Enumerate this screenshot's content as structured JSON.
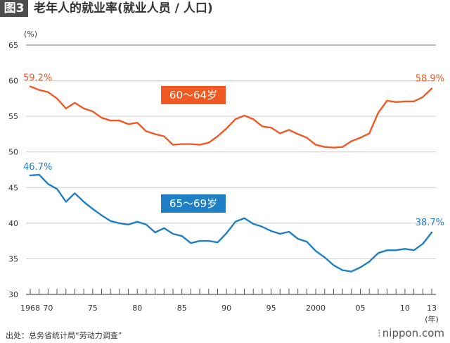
{
  "header": {
    "figure_label": "图3",
    "title": "老年人的就业率(就业人员 / 人口)"
  },
  "footer": {
    "source": "出处：总务省统计局“劳动力调查”",
    "brand": "nippon.com",
    "brand_mark": "⁝"
  },
  "chart_data": {
    "type": "line",
    "title": "老年人的就业率(就业人员 / 人口)",
    "ylabel": "(%)",
    "xlabel": "(年)",
    "ylim": [
      30,
      65
    ],
    "yticks": [
      30,
      35,
      40,
      45,
      50,
      55,
      60,
      65
    ],
    "xlim": [
      1968,
      2013
    ],
    "xtick_labels": [
      {
        "x": 1968,
        "label": "1968"
      },
      {
        "x": 1970,
        "label": "70"
      },
      {
        "x": 1975,
        "label": "75"
      },
      {
        "x": 1980,
        "label": "80"
      },
      {
        "x": 1985,
        "label": "85"
      },
      {
        "x": 1990,
        "label": "90"
      },
      {
        "x": 1995,
        "label": "95"
      },
      {
        "x": 2000,
        "label": "2000"
      },
      {
        "x": 2005,
        "label": "05"
      },
      {
        "x": 2010,
        "label": "10"
      },
      {
        "x": 2013,
        "label": "13"
      }
    ],
    "grid": "horizontal",
    "series": [
      {
        "name": "60～64岁",
        "color": "#f05a22",
        "start_label": "59.2%",
        "end_label": "58.9%",
        "x": [
          1968,
          1969,
          1970,
          1971,
          1972,
          1973,
          1974,
          1975,
          1976,
          1977,
          1978,
          1979,
          1980,
          1981,
          1982,
          1983,
          1984,
          1985,
          1986,
          1987,
          1988,
          1989,
          1990,
          1991,
          1992,
          1993,
          1994,
          1995,
          1996,
          1997,
          1998,
          1999,
          2000,
          2001,
          2002,
          2003,
          2004,
          2005,
          2006,
          2007,
          2008,
          2009,
          2010,
          2011,
          2012,
          2013
        ],
        "values": [
          59.2,
          58.7,
          58.4,
          57.5,
          56.1,
          56.9,
          56.1,
          55.7,
          54.8,
          54.4,
          54.4,
          53.9,
          54.1,
          52.9,
          52.5,
          52.2,
          51.0,
          51.1,
          51.1,
          51.0,
          51.3,
          52.2,
          53.3,
          54.6,
          55.1,
          54.6,
          53.6,
          53.4,
          52.6,
          53.1,
          52.5,
          52.0,
          51.0,
          50.7,
          50.6,
          50.7,
          51.5,
          52.0,
          52.6,
          55.5,
          57.2,
          57.0,
          57.1,
          57.1,
          57.7,
          58.9
        ]
      },
      {
        "name": "65～69岁",
        "color": "#1f7fc4",
        "start_label": "46.7%",
        "end_label": "38.7%",
        "x": [
          1968,
          1969,
          1970,
          1971,
          1972,
          1973,
          1974,
          1975,
          1976,
          1977,
          1978,
          1979,
          1980,
          1981,
          1982,
          1983,
          1984,
          1985,
          1986,
          1987,
          1988,
          1989,
          1990,
          1991,
          1992,
          1993,
          1994,
          1995,
          1996,
          1997,
          1998,
          1999,
          2000,
          2001,
          2002,
          2003,
          2004,
          2005,
          2006,
          2007,
          2008,
          2009,
          2010,
          2011,
          2012,
          2013
        ],
        "values": [
          46.7,
          46.8,
          45.5,
          44.8,
          43.0,
          44.2,
          43.0,
          42.0,
          41.1,
          40.3,
          40.0,
          39.8,
          40.2,
          39.8,
          38.7,
          39.3,
          38.5,
          38.2,
          37.2,
          37.5,
          37.5,
          37.3,
          38.6,
          40.2,
          40.7,
          39.9,
          39.5,
          38.9,
          38.5,
          38.8,
          37.8,
          37.4,
          36.1,
          35.2,
          34.1,
          33.4,
          33.2,
          33.8,
          34.6,
          35.8,
          36.2,
          36.2,
          36.4,
          36.2,
          37.1,
          38.7
        ]
      }
    ]
  }
}
